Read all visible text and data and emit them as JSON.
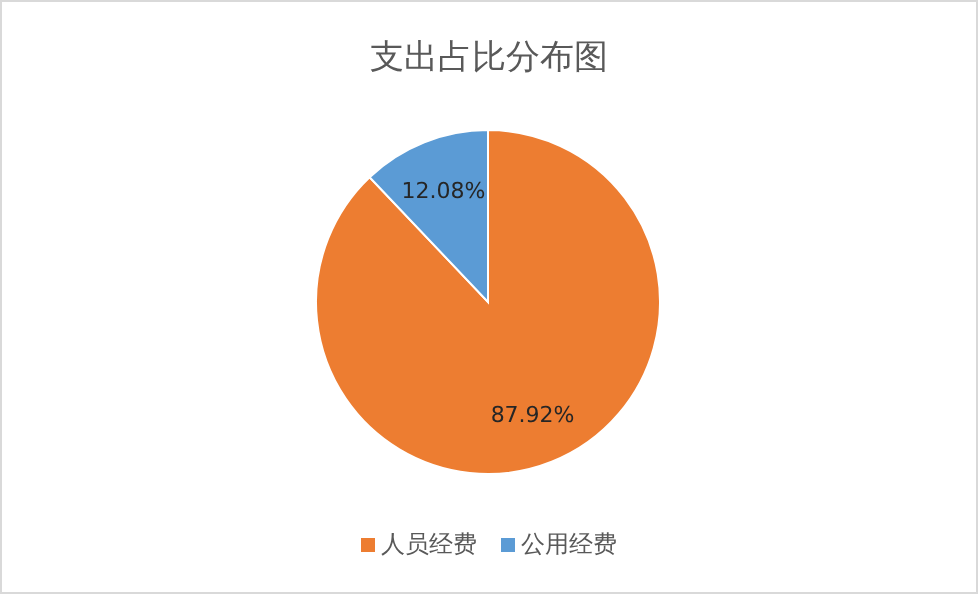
{
  "chart_data": {
    "type": "pie",
    "title": "支出占比分布图",
    "categories": [
      "人员经费",
      "公用经费"
    ],
    "values": [
      87.92,
      12.08
    ],
    "colors": [
      "#ed7d31",
      "#5b9bd5"
    ],
    "value_labels": [
      "87.92%",
      "12.08%"
    ],
    "legend": "bottom"
  }
}
